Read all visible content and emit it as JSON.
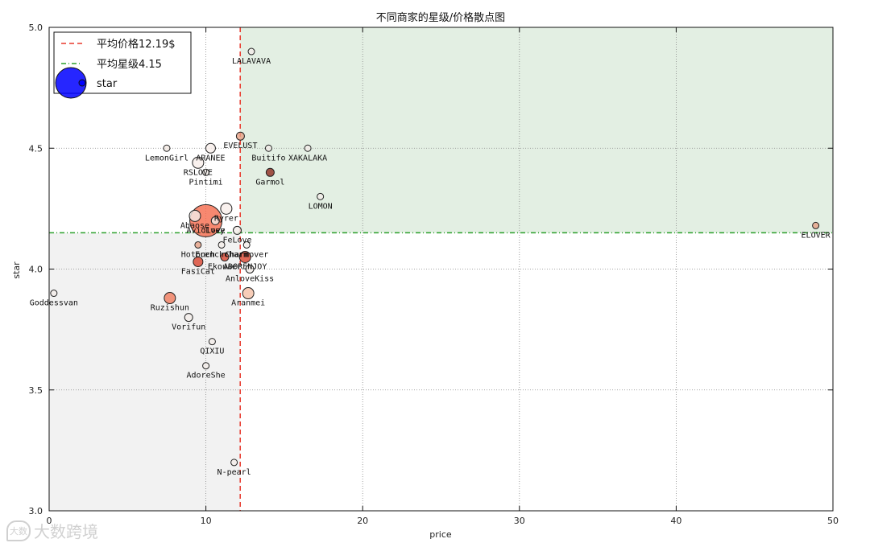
{
  "chart_data": {
    "type": "scatter",
    "title": "不同商家的星级/价格散点图",
    "xlabel": "price",
    "ylabel": "star",
    "xlim": [
      0,
      50
    ],
    "ylim": [
      3.0,
      5.0
    ],
    "xticks": [
      "0",
      "10",
      "20",
      "30",
      "40",
      "50"
    ],
    "yticks": [
      "3.0",
      "3.5",
      "4.0",
      "4.5",
      "5.0"
    ],
    "grid": true,
    "legend_position": "top-left",
    "legend": [
      "平均价格12.19$",
      "平均星级4.15",
      "star"
    ],
    "mean_price": 12.19,
    "mean_star": 4.15,
    "colors": {
      "mean_price_line": "#e8382b",
      "mean_star_line": "#2ca02c",
      "upper_right_region": "#e3efe3",
      "lower_left_region": "#f2f2f2",
      "legend_marker": "#0000ff"
    },
    "points": [
      {
        "label": "LALAVAVA",
        "x": 12.9,
        "y": 4.9,
        "size": 4,
        "color": "#f3ece8"
      },
      {
        "label": "EVELUST",
        "x": 12.2,
        "y": 4.55,
        "size": 5,
        "color": "#e6a085"
      },
      {
        "label": "LemonGirl",
        "x": 7.5,
        "y": 4.5,
        "size": 4,
        "color": "#f3e8e2"
      },
      {
        "label": "ARANEE",
        "x": 10.3,
        "y": 4.5,
        "size": 6,
        "color": "#f8eeea"
      },
      {
        "label": "Buitifo",
        "x": 14.0,
        "y": 4.5,
        "size": 4,
        "color": "#f3ece8"
      },
      {
        "label": "XAKALAKA",
        "x": 16.5,
        "y": 4.5,
        "size": 4,
        "color": "#f3ece8"
      },
      {
        "label": "RSLOVE",
        "x": 9.5,
        "y": 4.44,
        "size": 7,
        "color": "#f8eeea"
      },
      {
        "label": "Pintimi",
        "x": 10.0,
        "y": 4.4,
        "size": 4,
        "color": "#f3ece8"
      },
      {
        "label": "Garmol",
        "x": 14.1,
        "y": 4.4,
        "size": 5,
        "color": "#8e2a1e"
      },
      {
        "label": "LOMON",
        "x": 17.3,
        "y": 4.3,
        "size": 4,
        "color": "#f3ece8"
      },
      {
        "label": "ELOVER",
        "x": 48.9,
        "y": 4.18,
        "size": 4,
        "color": "#e6a085"
      },
      {
        "label": "Ryrer",
        "x": 11.3,
        "y": 4.25,
        "size": 7,
        "color": "#f8eeea"
      },
      {
        "label": "Abaose",
        "x": 9.3,
        "y": 4.22,
        "size": 7,
        "color": "#f3ece8"
      },
      {
        "label": "Avidlove",
        "x": 10.0,
        "y": 4.2,
        "size": 20,
        "color": "#f56a4c"
      },
      {
        "label": "Lvey",
        "x": 10.6,
        "y": 4.2,
        "size": 5,
        "color": "#f3ece8"
      },
      {
        "label": "FeLove",
        "x": 12.0,
        "y": 4.16,
        "size": 5,
        "color": "#f3ece8"
      },
      {
        "label": "Hotouch",
        "x": 9.5,
        "y": 4.1,
        "size": 4,
        "color": "#e6a085"
      },
      {
        "label": "Frenchcharm",
        "x": 11.0,
        "y": 4.1,
        "size": 4,
        "color": "#f3ece8"
      },
      {
        "label": "Charmover",
        "x": 12.6,
        "y": 4.1,
        "size": 4,
        "color": "#f3ece8"
      },
      {
        "label": "FasiCat",
        "x": 9.5,
        "y": 4.03,
        "size": 6,
        "color": "#d9432e"
      },
      {
        "label": "Ekouaer",
        "x": 11.2,
        "y": 4.05,
        "size": 5,
        "color": "#d9432e"
      },
      {
        "label": "ADORENJOY",
        "x": 12.5,
        "y": 4.05,
        "size": 7,
        "color": "#d9432e"
      },
      {
        "label": "AnloveKiss",
        "x": 12.8,
        "y": 4.0,
        "size": 5,
        "color": "#f3ece8"
      },
      {
        "label": "Goddessvan",
        "x": 0.3,
        "y": 3.9,
        "size": 4,
        "color": "#f3ece8"
      },
      {
        "label": "Aranmei",
        "x": 12.7,
        "y": 3.9,
        "size": 7,
        "color": "#f5c0a6"
      },
      {
        "label": "Ruzishun",
        "x": 7.7,
        "y": 3.88,
        "size": 7,
        "color": "#f07a5c"
      },
      {
        "label": "Vorifun",
        "x": 8.9,
        "y": 3.8,
        "size": 5,
        "color": "#f3ece8"
      },
      {
        "label": "QIXIU",
        "x": 10.4,
        "y": 3.7,
        "size": 4,
        "color": "#f3ece8"
      },
      {
        "label": "AdoreShe",
        "x": 10.0,
        "y": 3.6,
        "size": 4,
        "color": "#f3ece8"
      },
      {
        "label": "N-pearl",
        "x": 11.8,
        "y": 3.2,
        "size": 4,
        "color": "#f3ece8"
      }
    ]
  },
  "watermark": {
    "text": "大数跨境",
    "icon_text": "大数"
  }
}
